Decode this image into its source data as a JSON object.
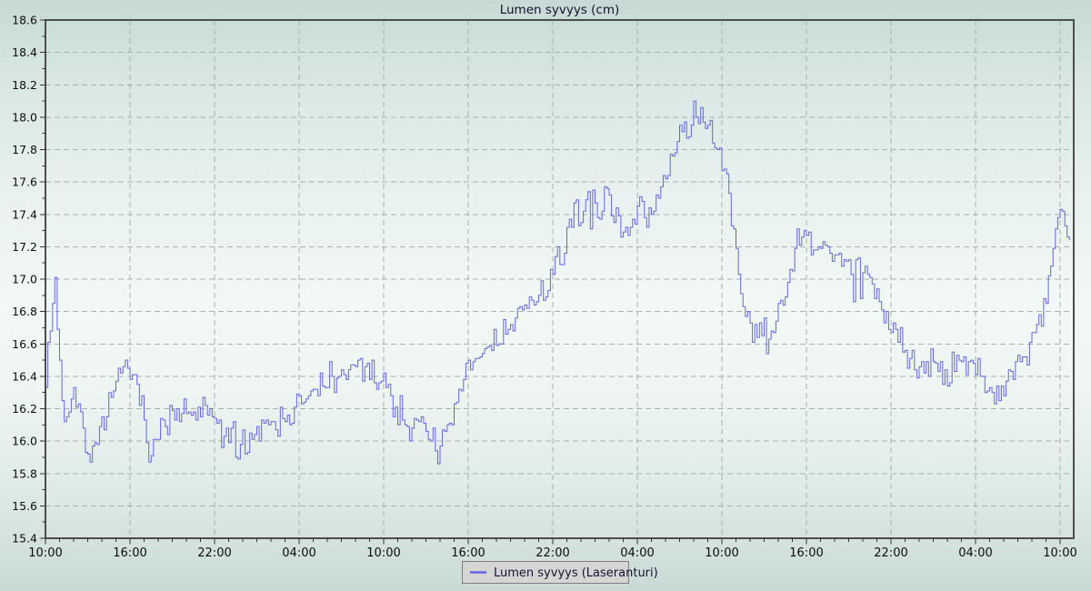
{
  "page": {
    "title": "Lumen syvyys (cm)"
  },
  "legend": {
    "label": "Lumen syvyys (Laseranturi)"
  },
  "colors": {
    "series_line": "#6366e3",
    "grid_line": "#a9b2b0",
    "frame": "#4d4d4d",
    "tick": "#333333",
    "title_text": "#12122c",
    "tick_text": "#0d0d0d",
    "legend_bg": "#d5d5d5",
    "legend_border": "#7d7d7d",
    "legend_text": "#14142e"
  },
  "chart_data": {
    "type": "line",
    "title": "Lumen syvyys (cm)",
    "series_name": "Lumen syvyys (Laseranturi)",
    "unit": "cm",
    "grid": "dashed",
    "legend_position": "bottom-center",
    "ylim": [
      15.4,
      18.6
    ],
    "ytick_step": 0.2,
    "ytick_labels": [
      "15.4",
      "15.6",
      "15.8",
      "16.0",
      "16.2",
      "16.4",
      "16.6",
      "16.8",
      "17.0",
      "17.2",
      "17.4",
      "17.6",
      "17.8",
      "18.0",
      "18.2",
      "18.4",
      "18.6"
    ],
    "xtick_hours": [
      0,
      6,
      12,
      18,
      24,
      30,
      36,
      42,
      48,
      54,
      60,
      66,
      72
    ],
    "xtick_labels": [
      "10:00",
      "16:00",
      "22:00",
      "04:00",
      "10:00",
      "16:00",
      "22:00",
      "04:00",
      "10:00",
      "16:00",
      "22:00",
      "04:00",
      "10:00"
    ],
    "x_axis_span_hours": 72.97,
    "data_end_hour": 72.8,
    "minor_xtick_hours": 1,
    "minor_ytick_step": 0.1,
    "line_color": "#6366e3",
    "trend_points": [
      [
        0,
        16.45
      ],
      [
        0.5,
        16.85
      ],
      [
        0.7,
        17.0
      ],
      [
        0.9,
        16.6
      ],
      [
        1.2,
        16.2
      ],
      [
        1.8,
        16.15
      ],
      [
        2.1,
        16.45
      ],
      [
        2.4,
        16.15
      ],
      [
        3.0,
        15.98
      ],
      [
        3.4,
        15.9
      ],
      [
        3.9,
        16.0
      ],
      [
        4.5,
        16.2
      ],
      [
        5.2,
        16.35
      ],
      [
        5.6,
        16.45
      ],
      [
        6.2,
        16.4
      ],
      [
        6.7,
        16.25
      ],
      [
        7.2,
        16.05
      ],
      [
        7.7,
        16.0
      ],
      [
        8.3,
        16.1
      ],
      [
        9.0,
        16.15
      ],
      [
        10.5,
        16.15
      ],
      [
        11.3,
        16.2
      ],
      [
        12.0,
        16.1
      ],
      [
        12.8,
        16.03
      ],
      [
        13.6,
        16.0
      ],
      [
        14.0,
        16.0
      ],
      [
        14.15,
        15.85
      ],
      [
        14.4,
        16.05
      ],
      [
        15.2,
        16.1
      ],
      [
        16.5,
        16.15
      ],
      [
        17.5,
        16.18
      ],
      [
        18.5,
        16.25
      ],
      [
        19.5,
        16.33
      ],
      [
        20.5,
        16.4
      ],
      [
        21.5,
        16.42
      ],
      [
        22.5,
        16.45
      ],
      [
        23.2,
        16.45
      ],
      [
        23.8,
        16.38
      ],
      [
        24.3,
        16.3
      ],
      [
        25.0,
        16.18
      ],
      [
        26.0,
        16.12
      ],
      [
        27.0,
        16.05
      ],
      [
        27.8,
        15.98
      ],
      [
        28.3,
        16.0
      ],
      [
        28.8,
        16.1
      ],
      [
        29.4,
        16.3
      ],
      [
        30.0,
        16.45
      ],
      [
        31.0,
        16.55
      ],
      [
        32.0,
        16.62
      ],
      [
        33.0,
        16.72
      ],
      [
        34.0,
        16.82
      ],
      [
        35.0,
        16.88
      ],
      [
        35.7,
        16.95
      ],
      [
        36.3,
        17.1
      ],
      [
        37.0,
        17.3
      ],
      [
        37.6,
        17.38
      ],
      [
        38.3,
        17.43
      ],
      [
        39.2,
        17.45
      ],
      [
        39.7,
        17.5
      ],
      [
        40.3,
        17.45
      ],
      [
        41.0,
        17.35
      ],
      [
        41.7,
        17.3
      ],
      [
        42.2,
        17.4
      ],
      [
        42.7,
        17.35
      ],
      [
        43.2,
        17.45
      ],
      [
        43.8,
        17.62
      ],
      [
        44.4,
        17.75
      ],
      [
        45.0,
        17.9
      ],
      [
        45.6,
        17.98
      ],
      [
        46.0,
        18.02
      ],
      [
        46.4,
        17.98
      ],
      [
        47.0,
        17.9
      ],
      [
        47.6,
        17.8
      ],
      [
        48.1,
        17.7
      ],
      [
        48.5,
        17.5
      ],
      [
        48.9,
        17.2
      ],
      [
        49.3,
        16.95
      ],
      [
        49.7,
        16.8
      ],
      [
        50.2,
        16.65
      ],
      [
        50.7,
        16.7
      ],
      [
        51.2,
        16.6
      ],
      [
        51.7,
        16.72
      ],
      [
        52.2,
        16.85
      ],
      [
        52.7,
        17.0
      ],
      [
        53.2,
        17.2
      ],
      [
        53.6,
        17.3
      ],
      [
        54.2,
        17.15
      ],
      [
        55.0,
        17.18
      ],
      [
        56.0,
        17.15
      ],
      [
        57.0,
        17.12
      ],
      [
        57.6,
        17.02
      ],
      [
        58.1,
        17.08
      ],
      [
        58.6,
        16.98
      ],
      [
        59.2,
        16.85
      ],
      [
        59.8,
        16.72
      ],
      [
        60.4,
        16.65
      ],
      [
        61.0,
        16.55
      ],
      [
        61.8,
        16.5
      ],
      [
        62.5,
        16.47
      ],
      [
        63.2,
        16.48
      ],
      [
        64.0,
        16.43
      ],
      [
        64.6,
        16.5
      ],
      [
        65.0,
        16.52
      ],
      [
        65.6,
        16.45
      ],
      [
        66.2,
        16.42
      ],
      [
        66.8,
        16.35
      ],
      [
        67.3,
        16.3
      ],
      [
        67.8,
        16.33
      ],
      [
        68.4,
        16.42
      ],
      [
        69.0,
        16.48
      ],
      [
        69.6,
        16.53
      ],
      [
        70.2,
        16.65
      ],
      [
        70.7,
        16.8
      ],
      [
        71.2,
        17.05
      ],
      [
        71.7,
        17.3
      ],
      [
        72.0,
        17.45
      ],
      [
        72.3,
        17.42
      ],
      [
        72.6,
        17.28
      ],
      [
        72.8,
        17.18
      ]
    ],
    "noise": {
      "amplitude": 0.13,
      "spike_probability": 0.03,
      "spike_amplitude": 0.18,
      "sample_minutes": 10,
      "seed": 7
    }
  }
}
